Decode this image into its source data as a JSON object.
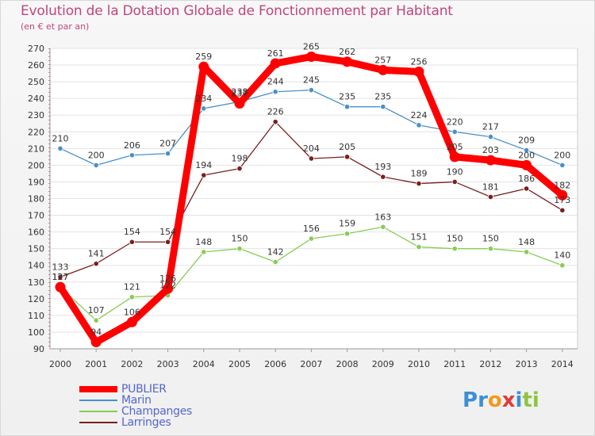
{
  "title": "Evolution de la Dotation Globale de Fonctionnement par Habitant",
  "subtitle": "(en € et par an)",
  "brand": {
    "letters": [
      {
        "ch": "P",
        "color": "#3b8fd6"
      },
      {
        "ch": "r",
        "color": "#3b8fd6"
      },
      {
        "ch": "o",
        "color": "#f29a1f"
      },
      {
        "ch": "x",
        "color": "#e03a3a"
      },
      {
        "ch": "i",
        "color": "#3b8fd6"
      },
      {
        "ch": "t",
        "color": "#8cc63f"
      },
      {
        "ch": "i",
        "color": "#8cc63f"
      }
    ]
  },
  "chart_data": {
    "type": "line",
    "title": "Evolution de la Dotation Globale de Fonctionnement par Habitant",
    "subtitle": "(en € et par an)",
    "xlabel": "",
    "ylabel": "",
    "x": [
      "2000",
      "2001",
      "2002",
      "2003",
      "2004",
      "2005",
      "2006",
      "2007",
      "2008",
      "2009",
      "2010",
      "2011",
      "2012",
      "2013",
      "2014"
    ],
    "ylim": [
      90,
      270
    ],
    "yticks": [
      90,
      100,
      110,
      120,
      130,
      140,
      150,
      160,
      170,
      180,
      190,
      200,
      210,
      220,
      230,
      240,
      250,
      260,
      270
    ],
    "grid": true,
    "legend_position": "bottom-left",
    "series": [
      {
        "name": "PUBLIER",
        "color": "#ff0000",
        "values": [
          127,
          94,
          106,
          126,
          259,
          237,
          261,
          265,
          262,
          257,
          256,
          205,
          203,
          200,
          182
        ]
      },
      {
        "name": "Marin",
        "color": "#4a90c8",
        "values": [
          210,
          200,
          206,
          207,
          234,
          238,
          244,
          245,
          235,
          235,
          224,
          220,
          217,
          209,
          200
        ]
      },
      {
        "name": "Champanges",
        "color": "#88cc55",
        "values": [
          127,
          107,
          121,
          122,
          148,
          150,
          142,
          156,
          159,
          163,
          151,
          150,
          150,
          148,
          140
        ]
      },
      {
        "name": "Larringes",
        "color": "#7a1f1f",
        "values": [
          133,
          141,
          154,
          154,
          194,
          198,
          226,
          204,
          205,
          193,
          189,
          190,
          181,
          186,
          173
        ]
      }
    ]
  }
}
